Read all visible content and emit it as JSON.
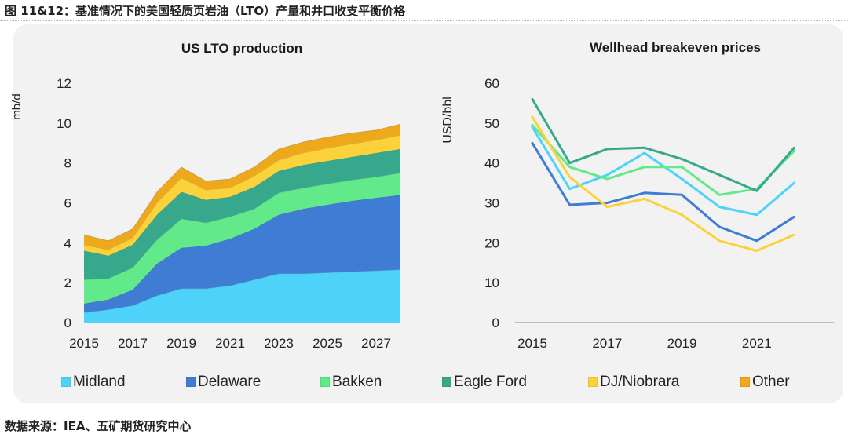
{
  "figure_title": "图 11&12：基准情况下的美国轻质页岩油（LTO）产量和井口收支平衡价格",
  "source": "数据来源：IEA、五矿期货研究中心",
  "colors": {
    "Midland": "#4dd3fa",
    "Delaware": "#3f7dd4",
    "Bakken": "#62ea8a",
    "Eagle Ford": "#37a88c",
    "DJ/Niobrara": "#fbd23a",
    "Other": "#eea81c"
  },
  "legend": [
    "Midland",
    "Delaware",
    "Bakken",
    "Eagle Ford",
    "DJ/Niobrara",
    "Other"
  ],
  "chart_data": [
    {
      "type": "area",
      "stacked": true,
      "title": "US LTO production",
      "ylabel": "mb/d",
      "xlabel": "",
      "ylim": [
        0,
        12
      ],
      "yticks": [
        0,
        2,
        4,
        6,
        8,
        10,
        12
      ],
      "xticks": [
        "2015",
        "2017",
        "2019",
        "2021",
        "2023",
        "2025",
        "2027"
      ],
      "x": [
        2015,
        2016,
        2017,
        2018,
        2019,
        2020,
        2021,
        2022,
        2023,
        2024,
        2025,
        2026,
        2027,
        2028
      ],
      "series": [
        {
          "name": "Midland",
          "values": [
            0.5,
            0.65,
            0.85,
            1.35,
            1.7,
            1.7,
            1.85,
            2.15,
            2.45,
            2.45,
            2.5,
            2.55,
            2.6,
            2.65
          ]
        },
        {
          "name": "Delaware",
          "values": [
            0.45,
            0.5,
            0.8,
            1.6,
            2.05,
            2.15,
            2.35,
            2.55,
            2.95,
            3.25,
            3.4,
            3.55,
            3.65,
            3.75
          ]
        },
        {
          "name": "Bakken",
          "values": [
            1.2,
            1.05,
            1.1,
            1.2,
            1.45,
            1.15,
            1.1,
            1.0,
            1.1,
            1.05,
            1.05,
            1.05,
            1.05,
            1.1
          ]
        },
        {
          "name": "Eagle Ford",
          "values": [
            1.45,
            1.15,
            1.15,
            1.25,
            1.35,
            1.15,
            1.0,
            1.1,
            1.1,
            1.15,
            1.15,
            1.15,
            1.2,
            1.2
          ]
        },
        {
          "name": "DJ/Niobrara",
          "values": [
            0.3,
            0.3,
            0.35,
            0.6,
            0.7,
            0.5,
            0.45,
            0.55,
            0.55,
            0.6,
            0.65,
            0.65,
            0.65,
            0.7
          ]
        },
        {
          "name": "Other",
          "values": [
            0.5,
            0.45,
            0.45,
            0.55,
            0.55,
            0.45,
            0.45,
            0.45,
            0.55,
            0.55,
            0.55,
            0.55,
            0.5,
            0.55
          ]
        }
      ]
    },
    {
      "type": "line",
      "title": "Wellhead breakeven prices",
      "ylabel": "USD/bbl",
      "xlabel": "",
      "ylim": [
        0,
        60
      ],
      "yticks": [
        0,
        10,
        20,
        30,
        40,
        50,
        60
      ],
      "xticks": [
        "2015",
        "2017",
        "2019",
        "2021"
      ],
      "x": [
        2015,
        2016,
        2017,
        2018,
        2019,
        2020,
        2021,
        2022
      ],
      "series": [
        {
          "name": "Midland",
          "values": [
            49,
            33.5,
            37,
            42.5,
            36,
            29,
            27,
            35
          ]
        },
        {
          "name": "Delaware",
          "values": [
            45,
            29.5,
            30,
            32.5,
            32,
            24,
            20.5,
            26.5
          ]
        },
        {
          "name": "Bakken",
          "values": [
            49.5,
            39,
            36,
            39,
            39,
            32,
            33.5,
            43
          ]
        },
        {
          "name": "Eagle Ford",
          "values": [
            56,
            40,
            43.5,
            43.8,
            41,
            37,
            33,
            43.8
          ]
        },
        {
          "name": "DJ/Niobrara",
          "values": [
            51.5,
            36.5,
            29,
            31,
            27,
            20.5,
            18,
            22
          ]
        }
      ]
    }
  ]
}
